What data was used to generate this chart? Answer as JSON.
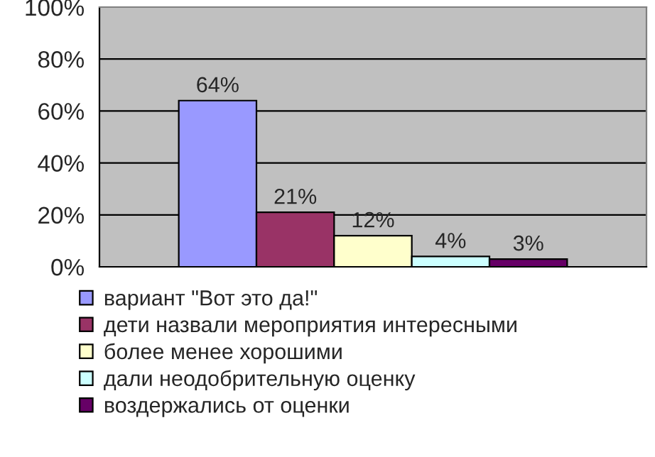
{
  "chart_data": {
    "type": "bar",
    "categories": [
      null
    ],
    "series": [
      {
        "name": "вариант \"Вот это да!\"",
        "color": "#9999ff",
        "values": [
          64
        ],
        "value_labels": [
          "64%"
        ]
      },
      {
        "name": "дети назвали мероприятия интересными",
        "color": "#993366",
        "values": [
          21
        ],
        "value_labels": [
          "21%"
        ]
      },
      {
        "name": "более менее хорошими",
        "color": "#ffffcc",
        "values": [
          12
        ],
        "value_labels": [
          "12%"
        ]
      },
      {
        "name": "дали неодобрительную оценку",
        "color": "#ccffff",
        "values": [
          4
        ],
        "value_labels": [
          "4%"
        ]
      },
      {
        "name": "воздержались от оценки",
        "color": "#660066",
        "values": [
          3
        ],
        "value_labels": [
          "3%"
        ]
      }
    ],
    "ylim": [
      0,
      100
    ],
    "yticks": [
      {
        "value": 0,
        "label": "0%"
      },
      {
        "value": 20,
        "label": "20%"
      },
      {
        "value": 40,
        "label": "40%"
      },
      {
        "value": 60,
        "label": "60%"
      },
      {
        "value": 80,
        "label": "80%"
      },
      {
        "value": 100,
        "label": "100%"
      }
    ],
    "grid": "y",
    "legend": "bottom"
  }
}
